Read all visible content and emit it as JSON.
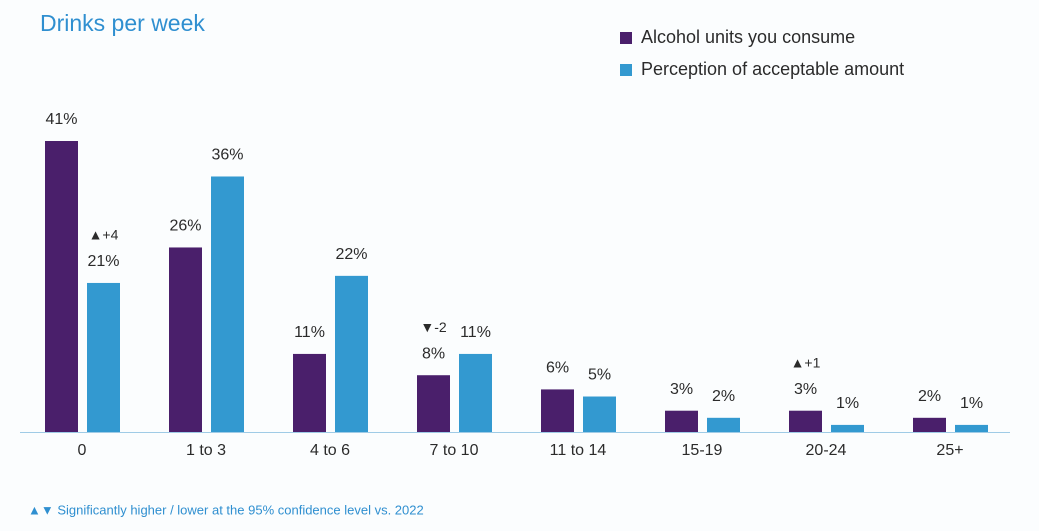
{
  "chart_data": {
    "type": "bar",
    "title": "Drinks per week",
    "categories": [
      "0",
      "1 to 3",
      "4 to 6",
      "7 to 10",
      "11 to 14",
      "15-19",
      "20-24",
      "25+"
    ],
    "series": [
      {
        "name": "Alcohol units you consume",
        "color": "#4a1f6b",
        "values": [
          41,
          26,
          11,
          8,
          6,
          3,
          3,
          2
        ],
        "value_labels": [
          "41%",
          "26%",
          "11%",
          "8%",
          "6%",
          "3%",
          "3%",
          "2%"
        ],
        "annotations": [
          null,
          null,
          null,
          "▼-2",
          null,
          null,
          "▲+1",
          null
        ]
      },
      {
        "name": "Perception of acceptable amount",
        "color": "#3399d0",
        "values": [
          21,
          36,
          22,
          11,
          5,
          2,
          1,
          1
        ],
        "value_labels": [
          "21%",
          "36%",
          "22%",
          "11%",
          "5%",
          "2%",
          "1%",
          "1%"
        ],
        "annotations": [
          "▲+4",
          null,
          null,
          null,
          null,
          null,
          null,
          null
        ]
      }
    ],
    "legend": "top-right",
    "footnote": "▲▼ Significantly higher / lower at the 95% confidence level vs. 2022"
  }
}
